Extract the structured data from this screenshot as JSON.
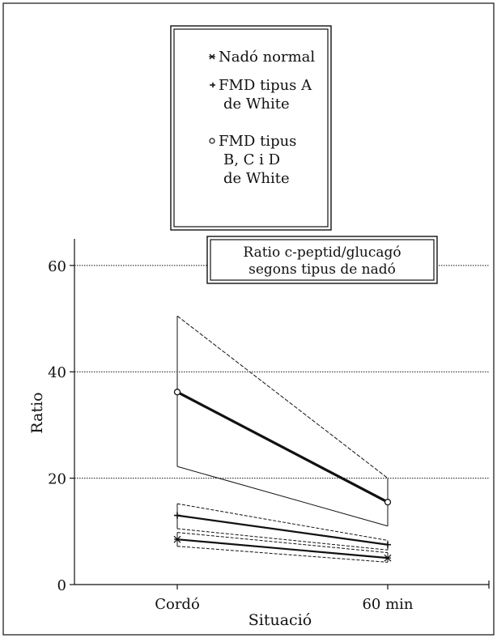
{
  "chart_data": {
    "type": "line",
    "title": "Ratio c-peptid/glucagó segons tipus de nadó",
    "title_lines": [
      "Ratio c-peptid/glucagó",
      "segons tipus de nadó"
    ],
    "xlabel": "Situació",
    "ylabel": "Ratio",
    "categories": [
      "Cordó",
      "60 min"
    ],
    "ylim": [
      0,
      65
    ],
    "yticks": [
      0,
      20,
      40,
      60
    ],
    "grid": "dotted horizontal lines at 20, 40, 60",
    "legend_position": "top-center",
    "legend": [
      {
        "marker": "*",
        "lines": [
          "Nadó normal"
        ]
      },
      {
        "marker": "+",
        "lines": [
          "FMD tipus A",
          "de White"
        ]
      },
      {
        "marker": "o",
        "lines": [
          "FMD tipus",
          "B, C i D",
          "de White"
        ]
      }
    ],
    "series": [
      {
        "name": "Nadó normal",
        "values": [
          8.5,
          5.0
        ],
        "range_low": [
          7.2,
          4.2
        ],
        "range_high": [
          9.8,
          6.0
        ]
      },
      {
        "name": "FMD tipus A de White",
        "values": [
          13.0,
          7.5
        ],
        "range_low": [
          10.5,
          6.5
        ],
        "range_high": [
          15.2,
          8.3
        ]
      },
      {
        "name": "FMD tipus B, C i D de White",
        "values": [
          36.2,
          15.5
        ],
        "range_low": [
          22.2,
          11.0
        ],
        "range_high": [
          50.5,
          20.0
        ]
      }
    ]
  },
  "colors": {
    "ink": "#111111",
    "background": "#ffffff"
  }
}
